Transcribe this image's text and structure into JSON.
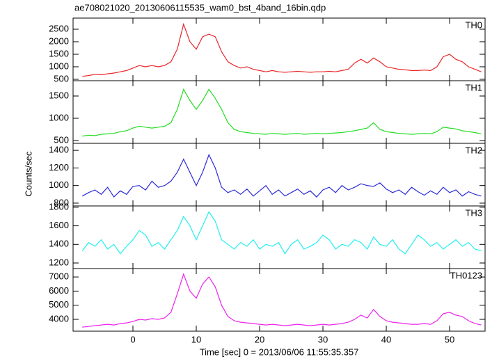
{
  "title": "ae708021020_20130606115535_wam0_bst_4band_16bin.qdp",
  "ylabel": "Counts/sec",
  "xlabel": "Time [sec] 0 = 2013/06/06 11:55:35.357",
  "chart_data": [
    {
      "type": "line",
      "title": "TH0",
      "color": "#e8262a",
      "x": [
        -8,
        -7,
        -6,
        -5,
        -4,
        -3,
        -2,
        -1,
        0,
        1,
        2,
        3,
        4,
        5,
        6,
        7,
        8,
        9,
        10,
        11,
        12,
        13,
        14,
        15,
        16,
        17,
        18,
        19,
        20,
        21,
        22,
        23,
        24,
        25,
        26,
        27,
        28,
        29,
        30,
        31,
        32,
        33,
        34,
        35,
        36,
        37,
        38,
        39,
        40,
        41,
        42,
        43,
        44,
        45,
        46,
        47,
        48,
        49,
        50,
        51,
        52,
        53,
        54,
        55
      ],
      "values": [
        620,
        650,
        700,
        680,
        720,
        750,
        800,
        850,
        950,
        1050,
        1000,
        1050,
        1000,
        1050,
        1200,
        1700,
        2700,
        2000,
        1700,
        2200,
        2300,
        2200,
        1600,
        1200,
        1050,
        950,
        1000,
        900,
        850,
        800,
        850,
        800,
        780,
        800,
        820,
        800,
        780,
        800,
        800,
        820,
        800,
        850,
        900,
        1150,
        1300,
        1150,
        1350,
        1200,
        1000,
        950,
        900,
        880,
        850,
        850,
        870,
        850,
        1000,
        1400,
        1500,
        1300,
        1200,
        1000,
        900,
        800
      ],
      "xlim": [
        -9.45,
        55.6
      ],
      "xticks": [
        0,
        10,
        20,
        30,
        40,
        50
      ],
      "ylim": [
        444,
        2944
      ],
      "yticks": [
        500,
        1000,
        1500,
        2000,
        2500
      ]
    },
    {
      "type": "line",
      "title": "TH1",
      "color": "#22dd22",
      "x": [
        -8,
        -7,
        -6,
        -5,
        -4,
        -3,
        -2,
        -1,
        0,
        1,
        2,
        3,
        4,
        5,
        6,
        7,
        8,
        9,
        10,
        11,
        12,
        13,
        14,
        15,
        16,
        17,
        18,
        19,
        20,
        21,
        22,
        23,
        24,
        25,
        26,
        27,
        28,
        29,
        30,
        31,
        32,
        33,
        34,
        35,
        36,
        37,
        38,
        39,
        40,
        41,
        42,
        43,
        44,
        45,
        46,
        47,
        48,
        49,
        50,
        51,
        52,
        53,
        54,
        55
      ],
      "values": [
        600,
        620,
        610,
        640,
        650,
        660,
        700,
        720,
        780,
        820,
        800,
        780,
        800,
        820,
        900,
        1200,
        1650,
        1400,
        1200,
        1400,
        1650,
        1450,
        1200,
        900,
        750,
        700,
        680,
        660,
        650,
        640,
        660,
        650,
        640,
        650,
        660,
        640,
        650,
        660,
        650,
        660,
        670,
        680,
        700,
        720,
        750,
        780,
        900,
        750,
        700,
        680,
        660,
        650,
        640,
        650,
        660,
        650,
        700,
        800,
        780,
        760,
        720,
        700,
        680,
        650
      ],
      "xlim": [
        -9.45,
        55.6
      ],
      "xticks": [
        0,
        10,
        20,
        30,
        40,
        50
      ],
      "ylim": [
        437,
        1844
      ],
      "yticks": [
        500,
        1000,
        1500
      ]
    },
    {
      "type": "line",
      "title": "TH2",
      "color": "#2a2ad8",
      "x": [
        -8,
        -7,
        -6,
        -5,
        -4,
        -3,
        -2,
        -1,
        0,
        1,
        2,
        3,
        4,
        5,
        6,
        7,
        8,
        9,
        10,
        11,
        12,
        13,
        14,
        15,
        16,
        17,
        18,
        19,
        20,
        21,
        22,
        23,
        24,
        25,
        26,
        27,
        28,
        29,
        30,
        31,
        32,
        33,
        34,
        35,
        36,
        37,
        38,
        39,
        40,
        41,
        42,
        43,
        44,
        45,
        46,
        47,
        48,
        49,
        50,
        51,
        52,
        53,
        54,
        55
      ],
      "values": [
        880,
        920,
        950,
        900,
        980,
        870,
        940,
        900,
        990,
        1000,
        950,
        1050,
        980,
        1000,
        1050,
        1150,
        1300,
        1150,
        1000,
        1150,
        1350,
        1200,
        980,
        920,
        950,
        900,
        960,
        880,
        940,
        1000,
        900,
        950,
        880,
        920,
        960,
        900,
        940,
        870,
        950,
        980,
        920,
        1000,
        950,
        980,
        1020,
        1000,
        990,
        1030,
        960,
        920,
        950,
        900,
        980,
        930,
        890,
        940,
        900,
        980,
        920,
        950,
        880,
        930,
        900,
        880
      ],
      "xlim": [
        -9.45,
        55.6
      ],
      "xticks": [
        0,
        10,
        20,
        30,
        40,
        50
      ],
      "ylim": [
        768,
        1480
      ],
      "yticks": [
        800,
        1000,
        1200,
        1400
      ]
    },
    {
      "type": "line",
      "title": "TH3",
      "color": "#22eeee",
      "x": [
        -8,
        -7,
        -6,
        -5,
        -4,
        -3,
        -2,
        -1,
        0,
        1,
        2,
        3,
        4,
        5,
        6,
        7,
        8,
        9,
        10,
        11,
        12,
        13,
        14,
        15,
        16,
        17,
        18,
        19,
        20,
        21,
        22,
        23,
        24,
        25,
        26,
        27,
        28,
        29,
        30,
        31,
        32,
        33,
        34,
        35,
        36,
        37,
        38,
        39,
        40,
        41,
        42,
        43,
        44,
        45,
        46,
        47,
        48,
        49,
        50,
        51,
        52,
        53,
        54,
        55
      ],
      "values": [
        1330,
        1420,
        1380,
        1450,
        1350,
        1400,
        1300,
        1380,
        1450,
        1550,
        1500,
        1380,
        1420,
        1350,
        1450,
        1550,
        1700,
        1600,
        1450,
        1600,
        1750,
        1650,
        1450,
        1400,
        1350,
        1420,
        1380,
        1450,
        1350,
        1400,
        1380,
        1420,
        1300,
        1400,
        1450,
        1350,
        1380,
        1420,
        1500,
        1450,
        1350,
        1400,
        1380,
        1450,
        1420,
        1350,
        1480,
        1400,
        1380,
        1450,
        1350,
        1300,
        1400,
        1500,
        1450,
        1380,
        1420,
        1350,
        1400,
        1450,
        1380,
        1420,
        1350,
        1330
      ],
      "xlim": [
        -9.45,
        55.6
      ],
      "xticks": [
        0,
        10,
        20,
        30,
        40,
        50
      ],
      "ylim": [
        1140,
        1814
      ],
      "yticks": [
        1200,
        1400,
        1600,
        1800
      ]
    },
    {
      "type": "line",
      "title": "TH0123",
      "color": "#ee22ee",
      "x": [
        -8,
        -7,
        -6,
        -5,
        -4,
        -3,
        -2,
        -1,
        0,
        1,
        2,
        3,
        4,
        5,
        6,
        7,
        8,
        9,
        10,
        11,
        12,
        13,
        14,
        15,
        16,
        17,
        18,
        19,
        20,
        21,
        22,
        23,
        24,
        25,
        26,
        27,
        28,
        29,
        30,
        31,
        32,
        33,
        34,
        35,
        36,
        37,
        38,
        39,
        40,
        41,
        42,
        43,
        44,
        45,
        46,
        47,
        48,
        49,
        50,
        51,
        52,
        53,
        54,
        55
      ],
      "values": [
        3450,
        3500,
        3550,
        3600,
        3650,
        3600,
        3700,
        3750,
        3850,
        4000,
        3950,
        4050,
        4000,
        4100,
        4500,
        5800,
        7200,
        6000,
        5500,
        6500,
        7000,
        6300,
        5000,
        4200,
        3900,
        3800,
        3750,
        3700,
        3650,
        3600,
        3650,
        3600,
        3550,
        3600,
        3650,
        3600,
        3550,
        3600,
        3650,
        3600,
        3650,
        3700,
        3800,
        4000,
        4300,
        4100,
        4700,
        4200,
        3900,
        3800,
        3750,
        3700,
        3650,
        3650,
        3700,
        3650,
        3900,
        4400,
        4500,
        4300,
        4200,
        3900,
        3700,
        3600
      ],
      "xlim": [
        -9.45,
        55.6
      ],
      "xticks": [
        0,
        10,
        20,
        30,
        40,
        50
      ],
      "ylim": [
        3163,
        7596
      ],
      "yticks": [
        4000,
        5000,
        6000,
        7000
      ]
    }
  ]
}
